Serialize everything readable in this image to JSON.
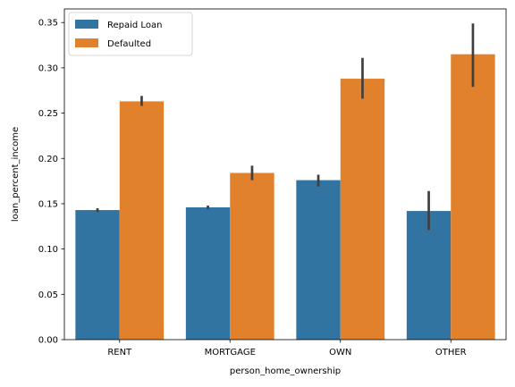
{
  "chart_data": {
    "type": "bar",
    "categories": [
      "RENT",
      "MORTGAGE",
      "OWN",
      "OTHER"
    ],
    "series": [
      {
        "name": "Repaid Loan",
        "color": "#3274a1",
        "values": [
          0.143,
          0.146,
          0.176,
          0.142
        ],
        "ci": [
          [
            0.141,
            0.145
          ],
          [
            0.144,
            0.148
          ],
          [
            0.169,
            0.182
          ],
          [
            0.121,
            0.164
          ]
        ]
      },
      {
        "name": "Defaulted",
        "color": "#e1812c",
        "values": [
          0.263,
          0.184,
          0.288,
          0.315
        ],
        "ci": [
          [
            0.258,
            0.269
          ],
          [
            0.176,
            0.192
          ],
          [
            0.266,
            0.311
          ],
          [
            0.279,
            0.349
          ]
        ]
      }
    ],
    "xlabel": "person_home_ownership",
    "ylabel": "loan_percent_income",
    "ylim": [
      0,
      0.365
    ],
    "yticks": [
      "0.00",
      "0.05",
      "0.10",
      "0.15",
      "0.20",
      "0.25",
      "0.30",
      "0.35"
    ],
    "grid": false,
    "legend": "top-left",
    "error_color": "#3f3f3f"
  }
}
